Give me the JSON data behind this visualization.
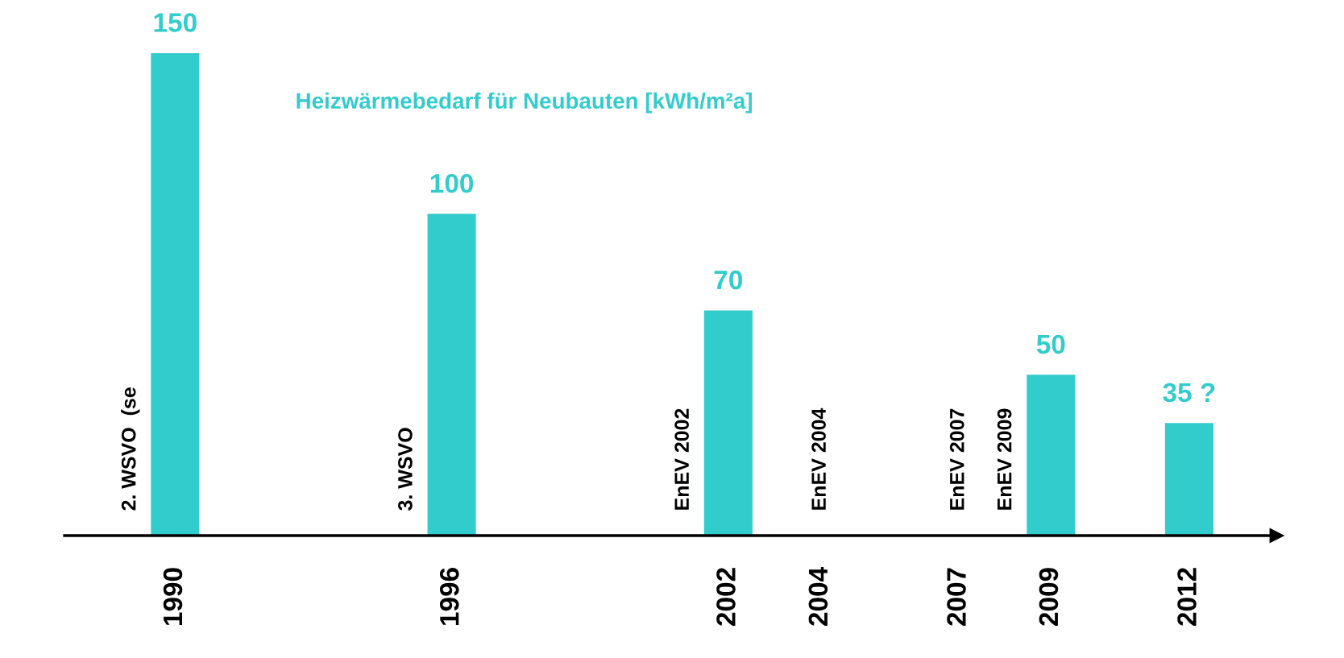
{
  "chart_data": {
    "type": "bar",
    "title": "Heizwärmebedarf für Neubauten [kWh/m²a]",
    "x": [
      1990,
      1996,
      2002,
      2009,
      2012
    ],
    "series": [
      {
        "color": "#33cccc",
        "values": [
          150,
          100,
          70,
          50,
          35
        ],
        "value_labels": [
          "150",
          "100",
          "70",
          "50",
          "35 ?"
        ]
      }
    ],
    "xlim": [
      1987.6,
      2013.9
    ],
    "xticks": [
      1990,
      1996,
      2002,
      2004,
      2007,
      2009,
      2012
    ],
    "tick_labels": "x",
    "grid": false,
    "legend": false,
    "annotations": [
      "2. WSVO  (se",
      "3. WSVO",
      "EnEV 2002",
      "EnEV 2004",
      "EnEV 2007",
      "EnEV 2009"
    ]
  }
}
